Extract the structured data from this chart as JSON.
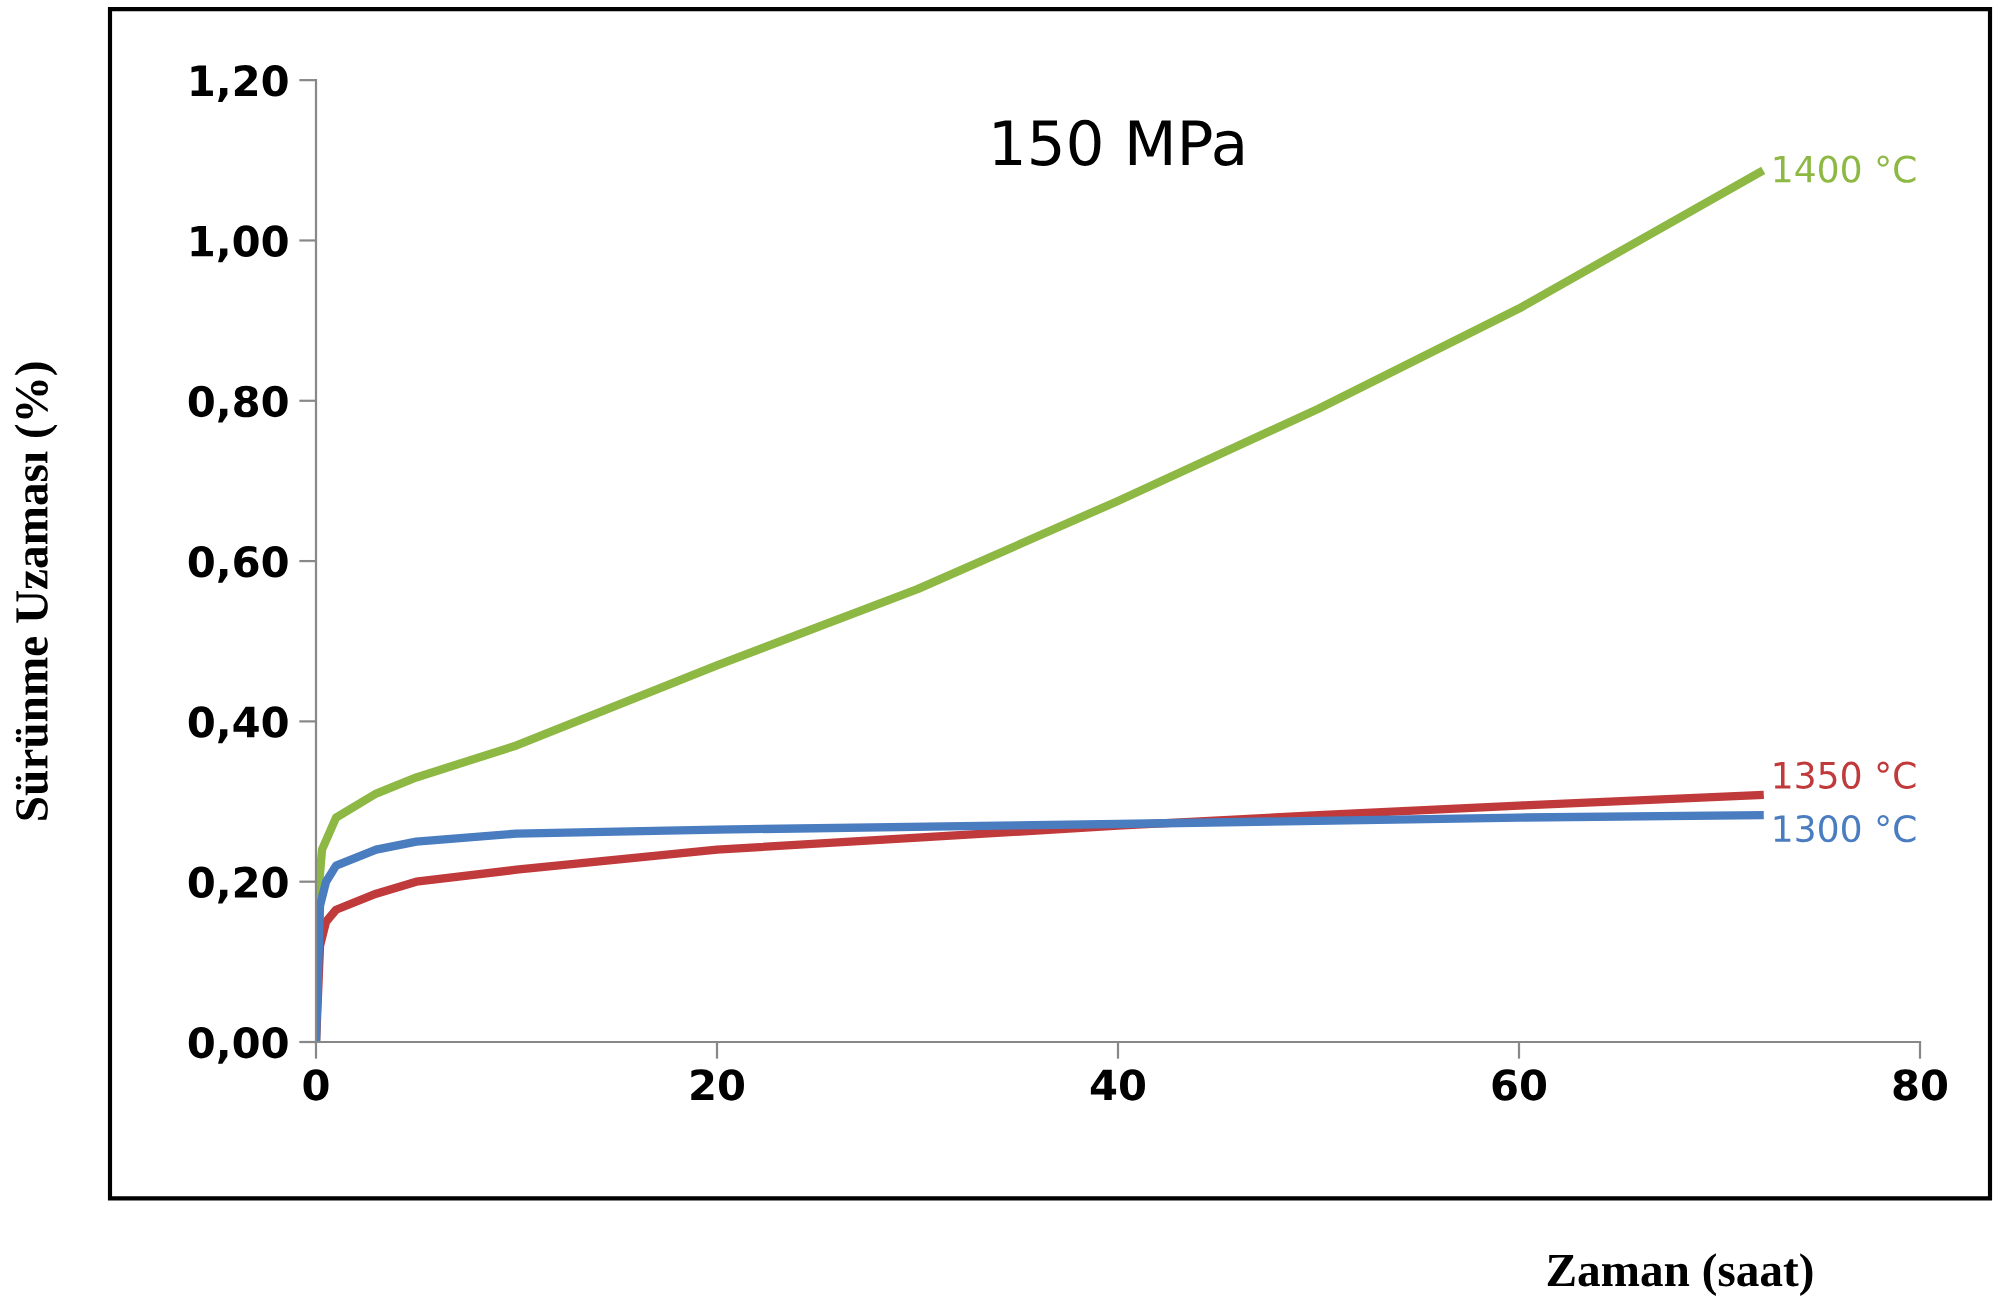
{
  "chart_data": {
    "type": "line",
    "title": "150 MPa",
    "xlabel": "Zaman (saat)",
    "ylabel": "Sürünme Uzaması (%)",
    "xlim": [
      0,
      80
    ],
    "xticks": [
      0,
      20,
      40,
      60,
      80
    ],
    "ylim": [
      0,
      1.2
    ],
    "yticks": [
      {
        "value": 0,
        "label": "0,00"
      },
      {
        "value": 0.2,
        "label": "0,20"
      },
      {
        "value": 0.4,
        "label": "0,40"
      },
      {
        "value": 0.6,
        "label": "0,60"
      },
      {
        "value": 0.8,
        "label": "0,80"
      },
      {
        "value": 1.0,
        "label": "1,00"
      },
      {
        "value": 1.2,
        "label": "1,20"
      }
    ],
    "grid": false,
    "legend": false,
    "marker": "none",
    "line_style": "solid",
    "series": [
      {
        "name": "1400 °C",
        "color": "#8db843",
        "x": [
          0,
          0.1,
          0.3,
          1,
          3,
          5,
          10,
          20,
          30,
          40,
          50,
          60,
          72
        ],
        "values": [
          0,
          0.18,
          0.24,
          0.28,
          0.31,
          0.33,
          0.37,
          0.47,
          0.565,
          0.675,
          0.79,
          0.915,
          1.085
        ]
      },
      {
        "name": "1350 °C",
        "color": "#c0393b",
        "x": [
          0,
          0.2,
          0.5,
          1,
          3,
          5,
          10,
          20,
          30,
          40,
          50,
          60,
          72
        ],
        "values": [
          0,
          0.12,
          0.15,
          0.165,
          0.185,
          0.2,
          0.215,
          0.24,
          0.255,
          0.27,
          0.283,
          0.295,
          0.308
        ]
      },
      {
        "name": "1300 °C",
        "color": "#4a7cc0",
        "x": [
          0,
          0.2,
          0.5,
          1,
          3,
          5,
          10,
          20,
          40,
          60,
          72
        ],
        "values": [
          0,
          0.17,
          0.2,
          0.22,
          0.24,
          0.25,
          0.26,
          0.265,
          0.272,
          0.28,
          0.283
        ]
      }
    ]
  }
}
